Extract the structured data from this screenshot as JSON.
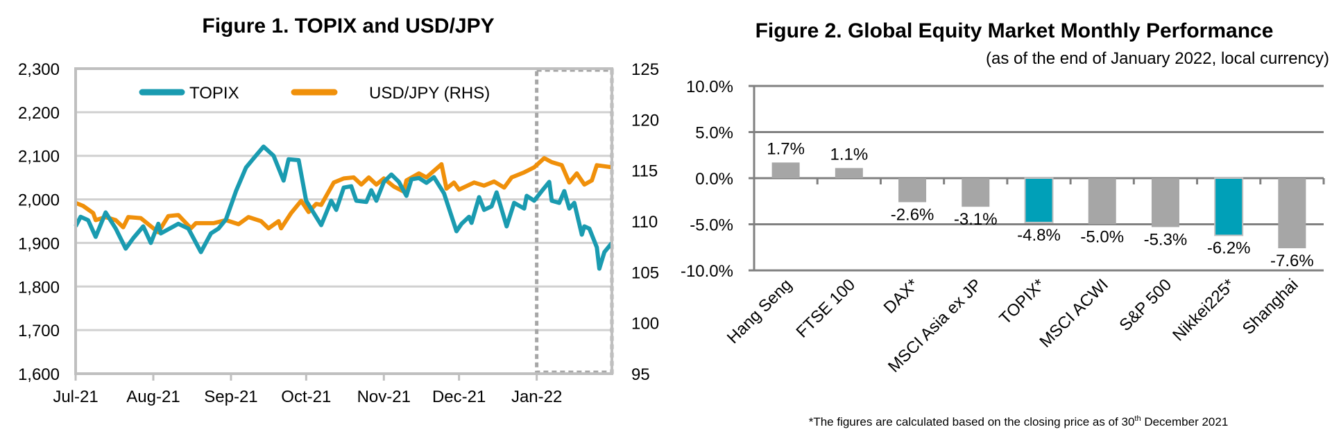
{
  "chart_data": [
    {
      "type": "line",
      "title": "Figure 1. TOPIX and USD/JPY",
      "x_range": [
        "2021-07-01",
        "2022-01-31"
      ],
      "x_tick_labels": [
        "Jul-21",
        "Aug-21",
        "Sep-21",
        "Oct-21",
        "Nov-21",
        "Dec-21",
        "Jan-22"
      ],
      "x_tick_dates": [
        "2021-07-01",
        "2021-08-01",
        "2021-09-01",
        "2021-10-01",
        "2021-11-01",
        "2021-12-01",
        "2022-01-01"
      ],
      "y_left": {
        "range": [
          1600,
          2300
        ],
        "ticks": [
          1600,
          1700,
          1800,
          1900,
          2000,
          2100,
          2200,
          2300
        ],
        "tick_labels": [
          "1,600",
          "1,700",
          "1,800",
          "1,900",
          "2,000",
          "2,100",
          "2,200",
          "2,300"
        ]
      },
      "y_right": {
        "range": [
          95,
          125
        ],
        "ticks": [
          95,
          100,
          105,
          110,
          115,
          120,
          125
        ],
        "tick_labels": [
          "95",
          "100",
          "105",
          "110",
          "115",
          "120",
          "125"
        ]
      },
      "grid": true,
      "legend_placement": "top",
      "highlight_range": [
        "2022-01-01",
        "2022-01-31"
      ],
      "series": [
        {
          "name": "TOPIX",
          "axis": "left",
          "color": "#1a9bb0",
          "x": [
            "2021-07-01",
            "2021-07-03",
            "2021-07-06",
            "2021-07-09",
            "2021-07-13",
            "2021-07-17",
            "2021-07-21",
            "2021-07-24",
            "2021-07-28",
            "2021-07-31",
            "2021-08-03",
            "2021-08-04",
            "2021-08-11",
            "2021-08-15",
            "2021-08-20",
            "2021-08-24",
            "2021-08-27",
            "2021-08-30",
            "2021-09-03",
            "2021-09-07",
            "2021-09-10",
            "2021-09-14",
            "2021-09-18",
            "2021-09-22",
            "2021-09-24",
            "2021-09-28",
            "2021-10-01",
            "2021-10-07",
            "2021-10-11",
            "2021-10-13",
            "2021-10-16",
            "2021-10-19",
            "2021-10-21",
            "2021-10-25",
            "2021-10-27",
            "2021-10-29",
            "2021-11-01",
            "2021-11-04",
            "2021-11-07",
            "2021-11-10",
            "2021-11-12",
            "2021-11-15",
            "2021-11-18",
            "2021-11-21",
            "2021-11-25",
            "2021-11-30",
            "2021-12-02",
            "2021-12-05",
            "2021-12-06",
            "2021-12-09",
            "2021-12-11",
            "2021-12-14",
            "2021-12-16",
            "2021-12-20",
            "2021-12-23",
            "2021-12-27",
            "2021-12-28",
            "2021-12-31",
            "2022-01-03",
            "2022-01-06",
            "2022-01-07",
            "2022-01-10",
            "2022-01-12",
            "2022-01-14",
            "2022-01-16",
            "2022-01-19",
            "2022-01-20",
            "2022-01-22",
            "2022-01-25",
            "2022-01-26",
            "2022-01-28",
            "2022-01-31"
          ],
          "y": [
            1938,
            1960,
            1952,
            1914,
            1970,
            1933,
            1887,
            1911,
            1938,
            1900,
            1944,
            1922,
            1944,
            1933,
            1879,
            1922,
            1933,
            1954,
            2019,
            2073,
            2094,
            2121,
            2100,
            2043,
            2092,
            2090,
            1997,
            1941,
            1997,
            1976,
            2027,
            2030,
            1997,
            1994,
            2021,
            1997,
            2040,
            2057,
            2040,
            2008,
            2046,
            2049,
            2038,
            2051,
            2014,
            1927,
            1944,
            1960,
            1946,
            2005,
            1976,
            1984,
            2016,
            1938,
            1992,
            1979,
            2008,
            1997,
            2019,
            2040,
            1997,
            1992,
            2019,
            1979,
            1992,
            1919,
            1938,
            1933,
            1890,
            1841,
            1879,
            1900
          ]
        },
        {
          "name": "USD/JPY (RHS)",
          "axis": "right",
          "color": "#f0900a",
          "x": [
            "2021-07-01",
            "2021-07-04",
            "2021-07-08",
            "2021-07-09",
            "2021-07-13",
            "2021-07-17",
            "2021-07-20",
            "2021-07-22",
            "2021-07-27",
            "2021-07-30",
            "2021-08-03",
            "2021-08-07",
            "2021-08-11",
            "2021-08-16",
            "2021-08-18",
            "2021-08-25",
            "2021-08-30",
            "2021-09-04",
            "2021-09-08",
            "2021-09-13",
            "2021-09-16",
            "2021-09-20",
            "2021-09-21",
            "2021-09-25",
            "2021-09-29",
            "2021-10-02",
            "2021-10-05",
            "2021-10-07",
            "2021-10-12",
            "2021-10-16",
            "2021-10-20",
            "2021-10-23",
            "2021-10-26",
            "2021-10-29",
            "2021-11-01",
            "2021-11-05",
            "2021-11-09",
            "2021-11-10",
            "2021-11-15",
            "2021-11-18",
            "2021-11-24",
            "2021-11-26",
            "2021-11-29",
            "2021-12-01",
            "2021-12-07",
            "2021-12-11",
            "2021-12-15",
            "2021-12-19",
            "2021-12-22",
            "2021-12-27",
            "2021-12-31",
            "2022-01-04",
            "2022-01-07",
            "2022-01-11",
            "2022-01-14",
            "2022-01-17",
            "2022-01-20",
            "2022-01-23",
            "2022-01-25",
            "2022-01-31"
          ],
          "y": [
            111.8,
            111.5,
            110.8,
            110.1,
            110.4,
            110.1,
            109.4,
            110.4,
            110.3,
            109.7,
            108.9,
            110.5,
            110.6,
            109.3,
            109.8,
            109.8,
            110.1,
            109.7,
            110.4,
            110.0,
            109.3,
            110.0,
            109.3,
            110.8,
            112.0,
            110.9,
            111.7,
            111.6,
            113.8,
            114.2,
            114.3,
            113.6,
            114.3,
            113.6,
            114.2,
            113.4,
            112.9,
            114.0,
            114.7,
            114.3,
            115.6,
            113.2,
            113.8,
            113.1,
            113.8,
            113.5,
            113.9,
            113.3,
            114.3,
            114.8,
            115.3,
            116.2,
            115.8,
            115.5,
            113.8,
            114.7,
            113.6,
            114.0,
            115.5,
            115.3
          ]
        }
      ]
    },
    {
      "type": "bar",
      "title": "Figure 2. Global Equity Market Monthly Performance",
      "subtitle": "(as of the end of January 2022, local currency)",
      "categories": [
        "Hang Seng",
        "FTSE 100",
        "DAX*",
        "MSCI Asia ex JP",
        "TOPIX*",
        "MSCI ACWI",
        "S&P 500",
        "Nikkei225*",
        "Shanghai"
      ],
      "values": [
        1.7,
        1.1,
        -2.6,
        -3.1,
        -4.8,
        -5.0,
        -5.3,
        -6.2,
        -7.6
      ],
      "data_labels": [
        "1.7%",
        "1.1%",
        "-2.6%",
        "-3.1%",
        "-4.8%",
        "-5.0%",
        "-5.3%",
        "-6.2%",
        "-7.6%"
      ],
      "highlighted": [
        "TOPIX*",
        "Nikkei225*"
      ],
      "colors": {
        "default": "#a6a6a6",
        "highlight": "#00a0b8"
      },
      "ylim": [
        -10,
        10
      ],
      "y_ticks": [
        -10,
        -5,
        0,
        5,
        10
      ],
      "y_tick_labels": [
        "-10.0%",
        "-5.0%",
        "0.0%",
        "5.0%",
        "10.0%"
      ],
      "grid": true,
      "footnote": "*The figures are calculated based on the closing price as of 30th December 2021",
      "footnote_parts": {
        "before": "*The figures are calculated based on the closing price as of 30",
        "sup": "th",
        "after": " December 2021"
      }
    }
  ]
}
